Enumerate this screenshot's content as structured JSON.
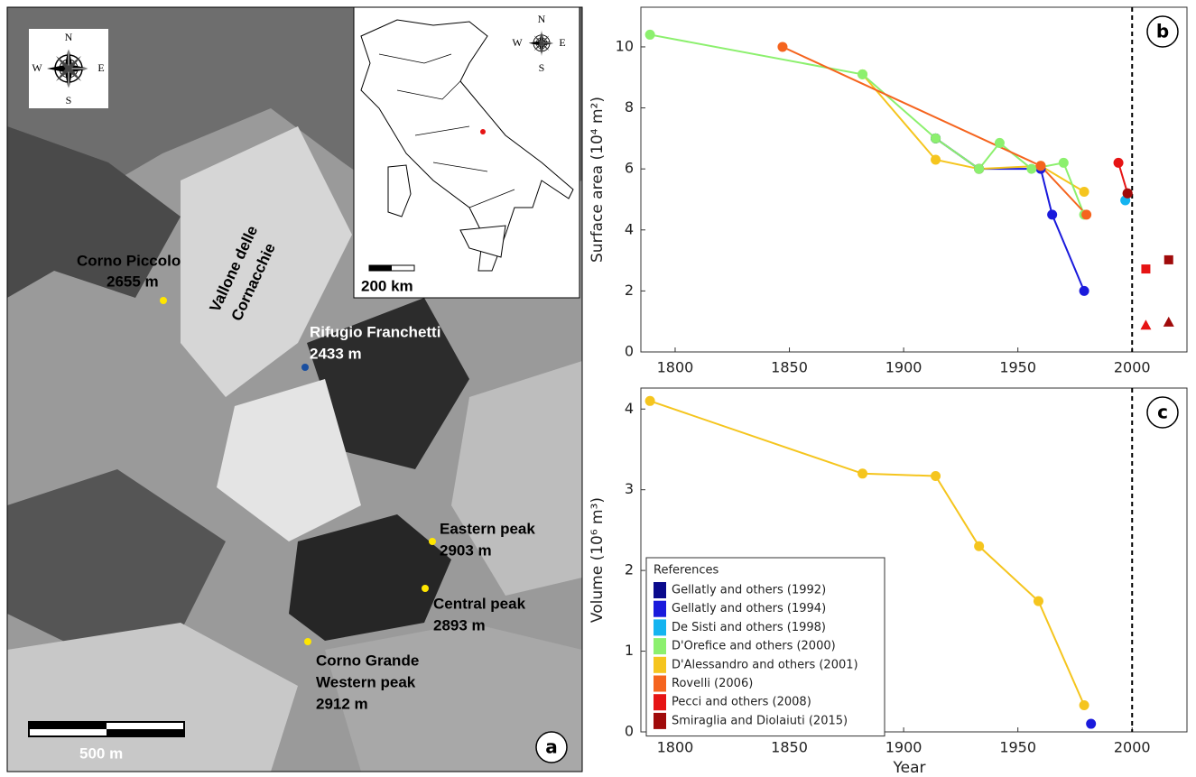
{
  "map": {
    "labels": [
      "Corno Piccolo",
      "2655 m",
      "Vallone delle",
      "Cornacchie",
      "Rifugio Franchetti",
      "2433 m",
      "Eastern peak",
      "2903 m",
      "Central peak",
      "2893 m",
      "Corno Grande",
      "Western peak",
      "2912 m"
    ],
    "scale_bar": "500 m",
    "inset_scale_bar": "200 km",
    "panel_label": "a",
    "compass": [
      "N",
      "E",
      "S",
      "W"
    ]
  },
  "chart_data": [
    {
      "type": "line",
      "panel_label": "b",
      "y_label": "Surface area (10⁴ m²)",
      "xlim": [
        1785,
        2024
      ],
      "xticks": [
        1800,
        1850,
        1900,
        1950,
        2000
      ],
      "ylim": [
        0,
        11.3
      ],
      "yticks": [
        0,
        2,
        4,
        6,
        8,
        10
      ],
      "vline": 2000,
      "series": [
        {
          "color": "#1a1adc",
          "marker": "circle",
          "line": true,
          "x": [
            1914,
            1933,
            1960,
            1965,
            1979
          ],
          "values": [
            7.0,
            6.0,
            6.0,
            4.5,
            2.0
          ]
        },
        {
          "color": "#0a0a8c",
          "marker": "circle",
          "line": true,
          "x": [
            1914,
            1933
          ],
          "values": [
            7.0,
            6.0
          ]
        },
        {
          "color": "#f5c51e",
          "marker": "circle",
          "line": true,
          "x": [
            1882,
            1914,
            1933,
            1960,
            1979
          ],
          "values": [
            9.1,
            6.3,
            6.0,
            6.1,
            5.25
          ]
        },
        {
          "color": "#8cf06e",
          "marker": "circle",
          "line": true,
          "x": [
            1789,
            1882,
            1914,
            1933,
            1942,
            1956,
            1970,
            1979
          ],
          "values": [
            10.4,
            9.1,
            7.0,
            6.0,
            6.85,
            6.0,
            6.2,
            4.5
          ]
        },
        {
          "color": "#f5641e",
          "marker": "circle",
          "line": true,
          "x": [
            1847,
            1960,
            1980
          ],
          "values": [
            10.0,
            6.1,
            4.5
          ]
        },
        {
          "color": "#14b4f0",
          "marker": "circle",
          "line": false,
          "x": [
            1997
          ],
          "values": [
            4.97
          ]
        },
        {
          "color": "#e61414",
          "marker": "circle",
          "line": true,
          "x": [
            1994,
            1998
          ],
          "values": [
            6.2,
            5.2
          ]
        },
        {
          "color": "#a00a0a",
          "marker": "circle",
          "line": false,
          "x": [
            1998
          ],
          "values": [
            5.2
          ]
        },
        {
          "color": "#e61414",
          "marker": "square",
          "line": false,
          "x": [
            2006
          ],
          "values": [
            2.72
          ]
        },
        {
          "color": "#a00a0a",
          "marker": "square",
          "line": false,
          "x": [
            2016
          ],
          "values": [
            3.02
          ]
        },
        {
          "color": "#e61414",
          "marker": "triangle",
          "line": false,
          "x": [
            2006
          ],
          "values": [
            0.88
          ]
        },
        {
          "color": "#a00a0a",
          "marker": "triangle",
          "line": false,
          "x": [
            2016
          ],
          "values": [
            0.98
          ]
        }
      ]
    },
    {
      "type": "line",
      "panel_label": "c",
      "y_label": "Volume (10⁶ m³)",
      "x_label": "Year",
      "xlim": [
        1785,
        2024
      ],
      "xticks": [
        1800,
        1850,
        1900,
        1950,
        2000
      ],
      "ylim": [
        0,
        4.26
      ],
      "yticks": [
        0,
        1,
        2,
        3,
        4
      ],
      "vline": 2000,
      "series": [
        {
          "color": "#f5c51e",
          "marker": "circle",
          "line": true,
          "x": [
            1789,
            1882,
            1914,
            1933,
            1959,
            1979
          ],
          "values": [
            4.1,
            3.2,
            3.17,
            2.3,
            1.62,
            0.33
          ]
        },
        {
          "color": "#1a1adc",
          "marker": "circle",
          "line": false,
          "x": [
            1982
          ],
          "values": [
            0.1
          ]
        }
      ],
      "legend": {
        "title": "References",
        "entries": [
          {
            "name": "Gellatly and others (1992)",
            "color": "#0a0a8c"
          },
          {
            "name": "Gellatly and others (1994)",
            "color": "#1a1adc"
          },
          {
            "name": "De Sisti and others (1998)",
            "color": "#14b4f0"
          },
          {
            "name": "D'Orefice and others (2000)",
            "color": "#8cf06e"
          },
          {
            "name": "D'Alessandro and others (2001)",
            "color": "#f5c51e"
          },
          {
            "name": "Rovelli (2006)",
            "color": "#f5641e"
          },
          {
            "name": "Pecci and others (2008)",
            "color": "#e61414"
          },
          {
            "name": "Smiraglia and Diolaiuti (2015)",
            "color": "#a00a0a"
          }
        ]
      }
    }
  ]
}
